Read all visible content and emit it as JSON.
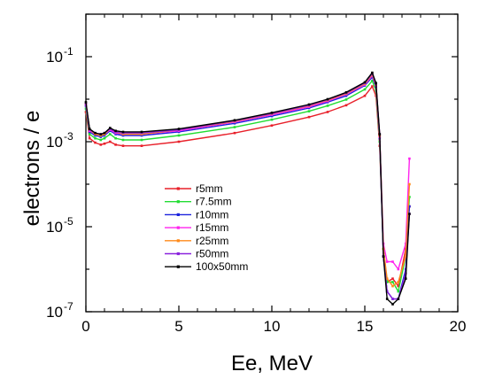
{
  "chart_data": {
    "type": "line",
    "title": "",
    "xlabel": "Ee, MeV",
    "ylabel": "electrons / e",
    "xlim": [
      0,
      20
    ],
    "ylim_log10": [
      -7,
      0
    ],
    "y_scale": "log",
    "x_ticks": [
      0,
      5,
      10,
      15,
      20
    ],
    "y_ticks": [
      {
        "exp": -7,
        "label": "10",
        "sup": "-7"
      },
      {
        "exp": -5,
        "label": "10",
        "sup": "-5"
      },
      {
        "exp": -3,
        "label": "10",
        "sup": "-3"
      },
      {
        "exp": -1,
        "label": "10",
        "sup": "-1"
      }
    ],
    "legend_position": "lower-left",
    "series": [
      {
        "name": "r5mm",
        "color": "#e8202a",
        "x": [
          0,
          0.2,
          0.5,
          0.8,
          1.0,
          1.3,
          1.6,
          2,
          3,
          5,
          8,
          10,
          12,
          13,
          14,
          15,
          15.4,
          15.6,
          15.8,
          16.0,
          16.2,
          16.5,
          16.8,
          17.2,
          17.4
        ],
        "y": [
          0.005,
          0.0012,
          0.00095,
          0.00085,
          0.0009,
          0.001,
          0.00085,
          0.0008,
          0.0008,
          0.001,
          0.0016,
          0.0024,
          0.0038,
          0.005,
          0.0072,
          0.012,
          0.02,
          0.012,
          0.0008,
          3e-06,
          5e-07,
          6e-07,
          4e-07,
          3e-06,
          3e-05
        ]
      },
      {
        "name": "r7.5mm",
        "color": "#22dd33",
        "x": [
          0,
          0.2,
          0.5,
          0.8,
          1.0,
          1.3,
          1.6,
          2,
          3,
          5,
          8,
          10,
          12,
          13,
          14,
          15,
          15.4,
          15.6,
          15.8,
          16.0,
          16.2,
          16.5,
          16.8,
          17.2,
          17.4
        ],
        "y": [
          0.006,
          0.0015,
          0.0012,
          0.0011,
          0.0012,
          0.0015,
          0.0012,
          0.0011,
          0.0011,
          0.0014,
          0.0022,
          0.0033,
          0.0052,
          0.007,
          0.0098,
          0.017,
          0.027,
          0.016,
          0.001,
          3e-06,
          5e-07,
          5e-07,
          3e-07,
          2e-06,
          5e-05
        ]
      },
      {
        "name": "r10mm",
        "color": "#1a22dd",
        "x": [
          0,
          0.2,
          0.5,
          0.8,
          1.0,
          1.3,
          1.6,
          2,
          3,
          5,
          8,
          10,
          12,
          13,
          14,
          15,
          15.4,
          15.6,
          15.8,
          16.0,
          16.2,
          16.5,
          16.8,
          17.2,
          17.4
        ],
        "y": [
          0.007,
          0.0017,
          0.0014,
          0.0013,
          0.0014,
          0.0018,
          0.0015,
          0.0014,
          0.0014,
          0.0017,
          0.0027,
          0.004,
          0.0062,
          0.0085,
          0.012,
          0.021,
          0.033,
          0.02,
          0.0012,
          2e-06,
          3e-07,
          2e-07,
          2e-07,
          1e-06,
          3e-05
        ]
      },
      {
        "name": "r15mm",
        "color": "#ff22ee",
        "x": [
          0,
          0.2,
          0.5,
          0.8,
          1.0,
          1.3,
          1.6,
          2,
          3,
          5,
          8,
          10,
          12,
          13,
          14,
          15,
          15.4,
          15.6,
          15.8,
          16.0,
          16.2,
          16.5,
          16.8,
          17.2,
          17.4
        ],
        "y": [
          0.0075,
          0.0018,
          0.0015,
          0.0014,
          0.0015,
          0.0019,
          0.0016,
          0.0015,
          0.0015,
          0.0018,
          0.0029,
          0.0043,
          0.0066,
          0.009,
          0.013,
          0.022,
          0.036,
          0.021,
          0.0013,
          4e-06,
          1.5e-06,
          1.5e-06,
          1e-06,
          4e-06,
          0.0004
        ]
      },
      {
        "name": "r25mm",
        "color": "#ff8a1a",
        "x": [
          0,
          0.2,
          0.5,
          0.8,
          1.0,
          1.3,
          1.6,
          2,
          3,
          5,
          8,
          10,
          12,
          13,
          14,
          15,
          15.4,
          15.6,
          15.8,
          16.0,
          16.2,
          16.5,
          16.8,
          17.2,
          17.4
        ],
        "y": [
          0.008,
          0.0019,
          0.0015,
          0.0014,
          0.0015,
          0.002,
          0.0017,
          0.0015,
          0.0015,
          0.0019,
          0.003,
          0.0045,
          0.007,
          0.0095,
          0.0135,
          0.023,
          0.038,
          0.022,
          0.0014,
          3e-06,
          6e-07,
          4e-07,
          5e-07,
          2e-06,
          0.0001
        ]
      },
      {
        "name": "r50mm",
        "color": "#8a22dd",
        "x": [
          0,
          0.2,
          0.5,
          0.8,
          1.0,
          1.3,
          1.6,
          2,
          3,
          5,
          8,
          10,
          12,
          13,
          14,
          15,
          15.4,
          15.6,
          15.8,
          16.0,
          16.2,
          16.5,
          16.8,
          17.2,
          17.4
        ],
        "y": [
          0.008,
          0.0019,
          0.0016,
          0.0015,
          0.0016,
          0.002,
          0.0017,
          0.0016,
          0.0016,
          0.0019,
          0.0031,
          0.0046,
          0.0072,
          0.0098,
          0.014,
          0.024,
          0.04,
          0.023,
          0.0015,
          2e-06,
          3e-07,
          2e-07,
          2e-07,
          8e-07,
          2e-05
        ]
      },
      {
        "name": "100x50mm",
        "color": "#000000",
        "x": [
          0,
          0.2,
          0.5,
          0.8,
          1.0,
          1.3,
          1.6,
          2,
          3,
          5,
          8,
          10,
          12,
          13,
          14,
          15,
          15.4,
          15.6,
          15.8,
          16.0,
          16.2,
          16.5,
          16.8,
          17.2,
          17.4
        ],
        "y": [
          0.0085,
          0.002,
          0.0016,
          0.0015,
          0.0016,
          0.0021,
          0.0018,
          0.0017,
          0.0017,
          0.002,
          0.0032,
          0.0048,
          0.0075,
          0.01,
          0.0145,
          0.025,
          0.042,
          0.024,
          0.0015,
          2e-06,
          2e-07,
          1.5e-07,
          2e-07,
          6e-07,
          2e-05
        ]
      }
    ]
  }
}
